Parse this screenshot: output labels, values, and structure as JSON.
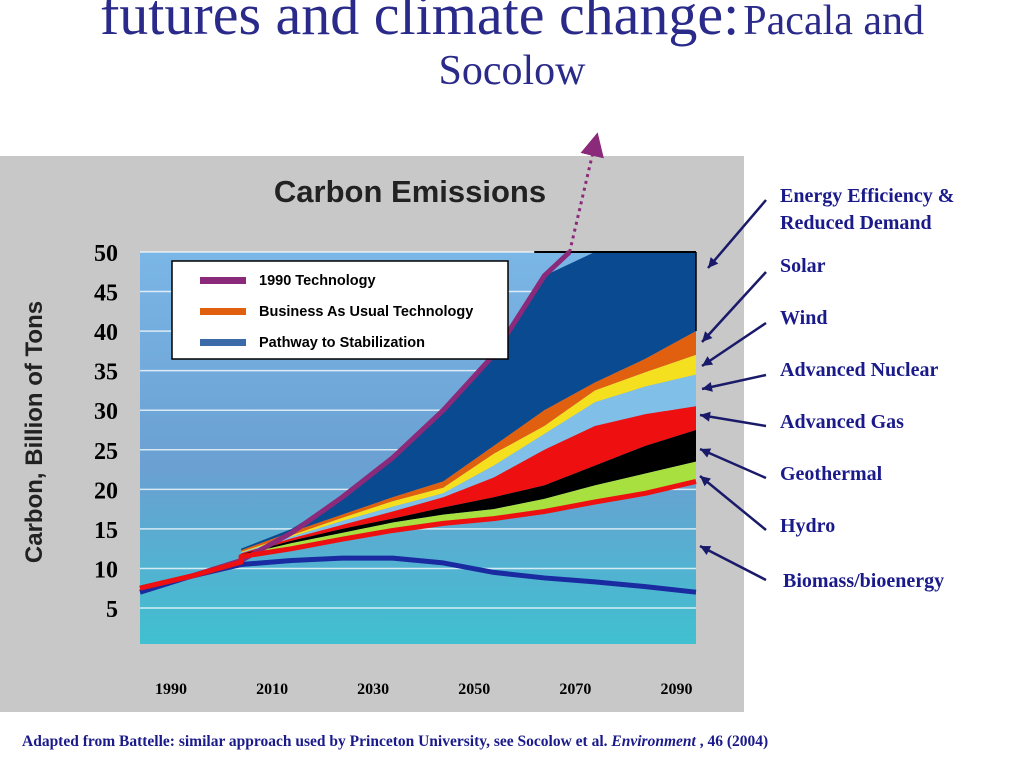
{
  "slide": {
    "title_main": "futures and climate change:",
    "title_sub1": "Pacala and",
    "title_sub2": "Socolow",
    "footer_prefix": "Adapted from Battelle: similar approach used by Princeton University, see Socolow et al.",
    "footer_italic": "Environment",
    "footer_suffix": ", 46 (2004)"
  },
  "wedge_labels": [
    "Energy Efficiency & Reduced Demand",
    "Solar",
    "Wind",
    "Advanced Nuclear",
    "Advanced Gas",
    "Geothermal",
    "Hydro",
    "Biomass/bioenergy"
  ],
  "colors": {
    "title": "#2a2a8a",
    "panel": "#c8c8c8",
    "tech1990": "#8b2a7a",
    "bau": "#e06010",
    "stabilization": "#1a2aa0",
    "efficiency": "#0a4a90",
    "solar": "#e06010",
    "wind": "#f5e020",
    "nuclear": "#80c0e8",
    "gas": "#ee1010",
    "geothermal": "#000000",
    "hydro": "#a8e040",
    "biomass": "#ee1010"
  },
  "chart_data": {
    "type": "area",
    "title": "Carbon Emissions",
    "ylabel": "Carbon, Billion of Tons",
    "xlabel": "",
    "x_ticks": [
      "1990",
      "2010",
      "2030",
      "2050",
      "2070",
      "2090"
    ],
    "y_ticks": [
      5,
      10,
      15,
      20,
      25,
      30,
      35,
      40,
      45,
      50
    ],
    "xlim": [
      1990,
      2100
    ],
    "ylim": [
      0,
      50
    ],
    "legend": {
      "placement": "top-left",
      "entries": [
        "1990 Technology",
        "Business As Usual Technology",
        "Pathway to Stabilization"
      ]
    },
    "series": [
      {
        "name": "1990 Technology",
        "kind": "line",
        "x": [
          1990,
          2000,
          2010,
          2020,
          2030,
          2040,
          2050,
          2060,
          2070,
          2075,
          2080
        ],
        "y": [
          7.5,
          9,
          11,
          14.5,
          19,
          24,
          30,
          37,
          47,
          50,
          66
        ]
      },
      {
        "name": "Business As Usual Technology",
        "kind": "line",
        "x": [
          1990,
          2000,
          2010,
          2020,
          2030,
          2040,
          2050,
          2060,
          2070,
          2080,
          2090,
          2095,
          2100
        ],
        "y": [
          7.5,
          9,
          10.5,
          12.3,
          14.8,
          17.5,
          20.5,
          25,
          28.5,
          31.6,
          35.5,
          37.5,
          40
        ]
      },
      {
        "name": "Pathway to Stabilization",
        "kind": "line",
        "x": [
          1990,
          2000,
          2010,
          2020,
          2030,
          2040,
          2050,
          2060,
          2070,
          2080,
          2090,
          2100
        ],
        "y": [
          7,
          9,
          10.5,
          11,
          11.3,
          11.3,
          10.7,
          9.5,
          8.8,
          8.3,
          7.7,
          7
        ]
      }
    ],
    "wedges": {
      "x": [
        2010,
        2020,
        2030,
        2040,
        2050,
        2060,
        2070,
        2080,
        2090,
        2100
      ],
      "boundaries": [
        {
          "name": "Biomass/bioenergy",
          "y": [
            11.5,
            12.5,
            13.7,
            14.8,
            15.7,
            16.3,
            17.2,
            18.4,
            19.5,
            21
          ]
        },
        {
          "name": "Hydro",
          "y": [
            11.7,
            13.2,
            14.5,
            15.8,
            16.8,
            17.5,
            18.8,
            20.5,
            22,
            23.5
          ]
        },
        {
          "name": "Geothermal",
          "y": [
            11.8,
            13.5,
            15,
            16.3,
            17.7,
            19,
            20.5,
            23,
            25.5,
            27.5
          ]
        },
        {
          "name": "Advanced Gas",
          "y": [
            11.9,
            13.8,
            15.5,
            17.2,
            19,
            21.5,
            25,
            28,
            29.5,
            30.5
          ]
        },
        {
          "name": "Advanced Nuclear",
          "y": [
            12,
            14,
            16,
            17.8,
            19.5,
            23,
            27,
            31,
            33,
            34.5
          ]
        },
        {
          "name": "Wind",
          "y": [
            12.1,
            14.2,
            16.4,
            18.5,
            20.2,
            24.5,
            28,
            32.5,
            34.8,
            37
          ]
        },
        {
          "name": "Solar",
          "y": [
            12.3,
            14.6,
            16.8,
            19,
            21,
            25.5,
            30,
            33.5,
            36.5,
            40
          ]
        },
        {
          "name": "Energy Efficiency & Reduced Demand",
          "y": [
            12.5,
            15,
            19,
            24,
            30,
            37,
            47,
            50,
            50,
            50
          ]
        }
      ]
    }
  }
}
